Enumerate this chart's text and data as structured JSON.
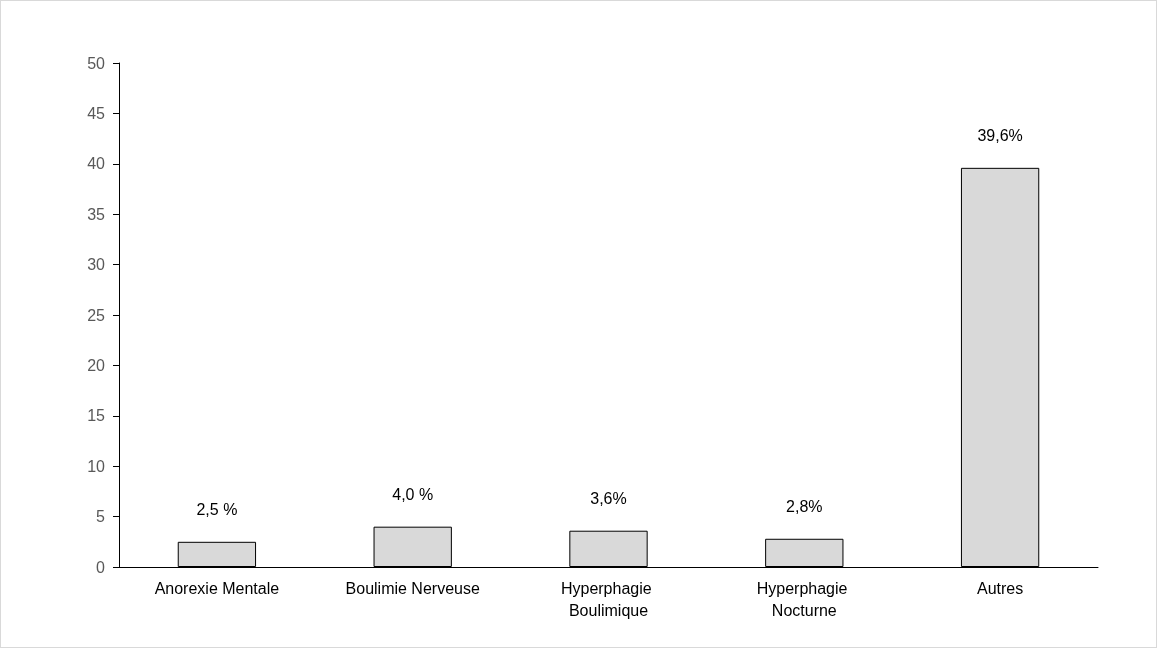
{
  "chart_data": {
    "type": "bar",
    "categories": [
      "Anorexie Mentale",
      "Boulimie Nerveuse",
      "Hyperphagie Boulimique",
      "Hyperphagie Nocturne",
      "Autres"
    ],
    "values": [
      2.5,
      4.0,
      3.6,
      2.8,
      39.6
    ],
    "value_labels": [
      "2,5 %",
      "4,0 %",
      "3,6%",
      "2,8%",
      "39,6%"
    ],
    "color": "#d9d9d9",
    "ylim": [
      0,
      50
    ],
    "yticks": [
      0,
      5,
      10,
      15,
      20,
      25,
      30,
      35,
      40,
      45,
      50
    ],
    "grid": false
  }
}
